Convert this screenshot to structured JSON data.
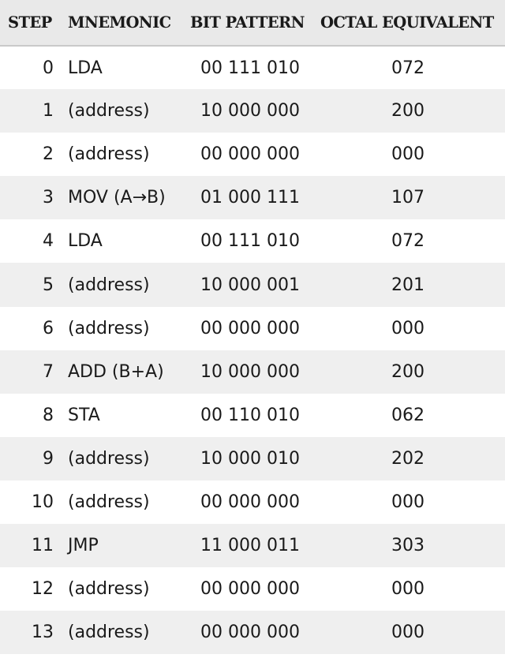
{
  "table": {
    "headers": [
      "STEP",
      "MNEMONIC",
      "BIT PATTERN",
      "OCTAL EQUIVALENT"
    ],
    "rows": [
      [
        "0",
        "LDA",
        "00 111 010",
        "072"
      ],
      [
        "1",
        "(address)",
        "10 000 000",
        "200"
      ],
      [
        "2",
        "(address)",
        "00 000 000",
        "000"
      ],
      [
        "3",
        "MOV (A→B)",
        "01 000 111",
        "107"
      ],
      [
        "4",
        "LDA",
        "00 111 010",
        "072"
      ],
      [
        "5",
        "(address)",
        "10 000 001",
        "201"
      ],
      [
        "6",
        "(address)",
        "00 000 000",
        "000"
      ],
      [
        "7",
        "ADD (B+A)",
        "10 000 000",
        "200"
      ],
      [
        "8",
        "STA",
        "00 110 010",
        "062"
      ],
      [
        "9",
        "(address)",
        "10 000 010",
        "202"
      ],
      [
        "10",
        "(address)",
        "00 000 000",
        "000"
      ],
      [
        "11",
        "JMP",
        "11 000 011",
        "303"
      ],
      [
        "12",
        "(address)",
        "00 000 000",
        "000"
      ],
      [
        "13",
        "(address)",
        "00 000 000",
        "000"
      ]
    ]
  },
  "colors": {
    "header_bg": "#e9e9e9",
    "stripe_bg": "#efefef",
    "text": "#1a1a1a"
  }
}
